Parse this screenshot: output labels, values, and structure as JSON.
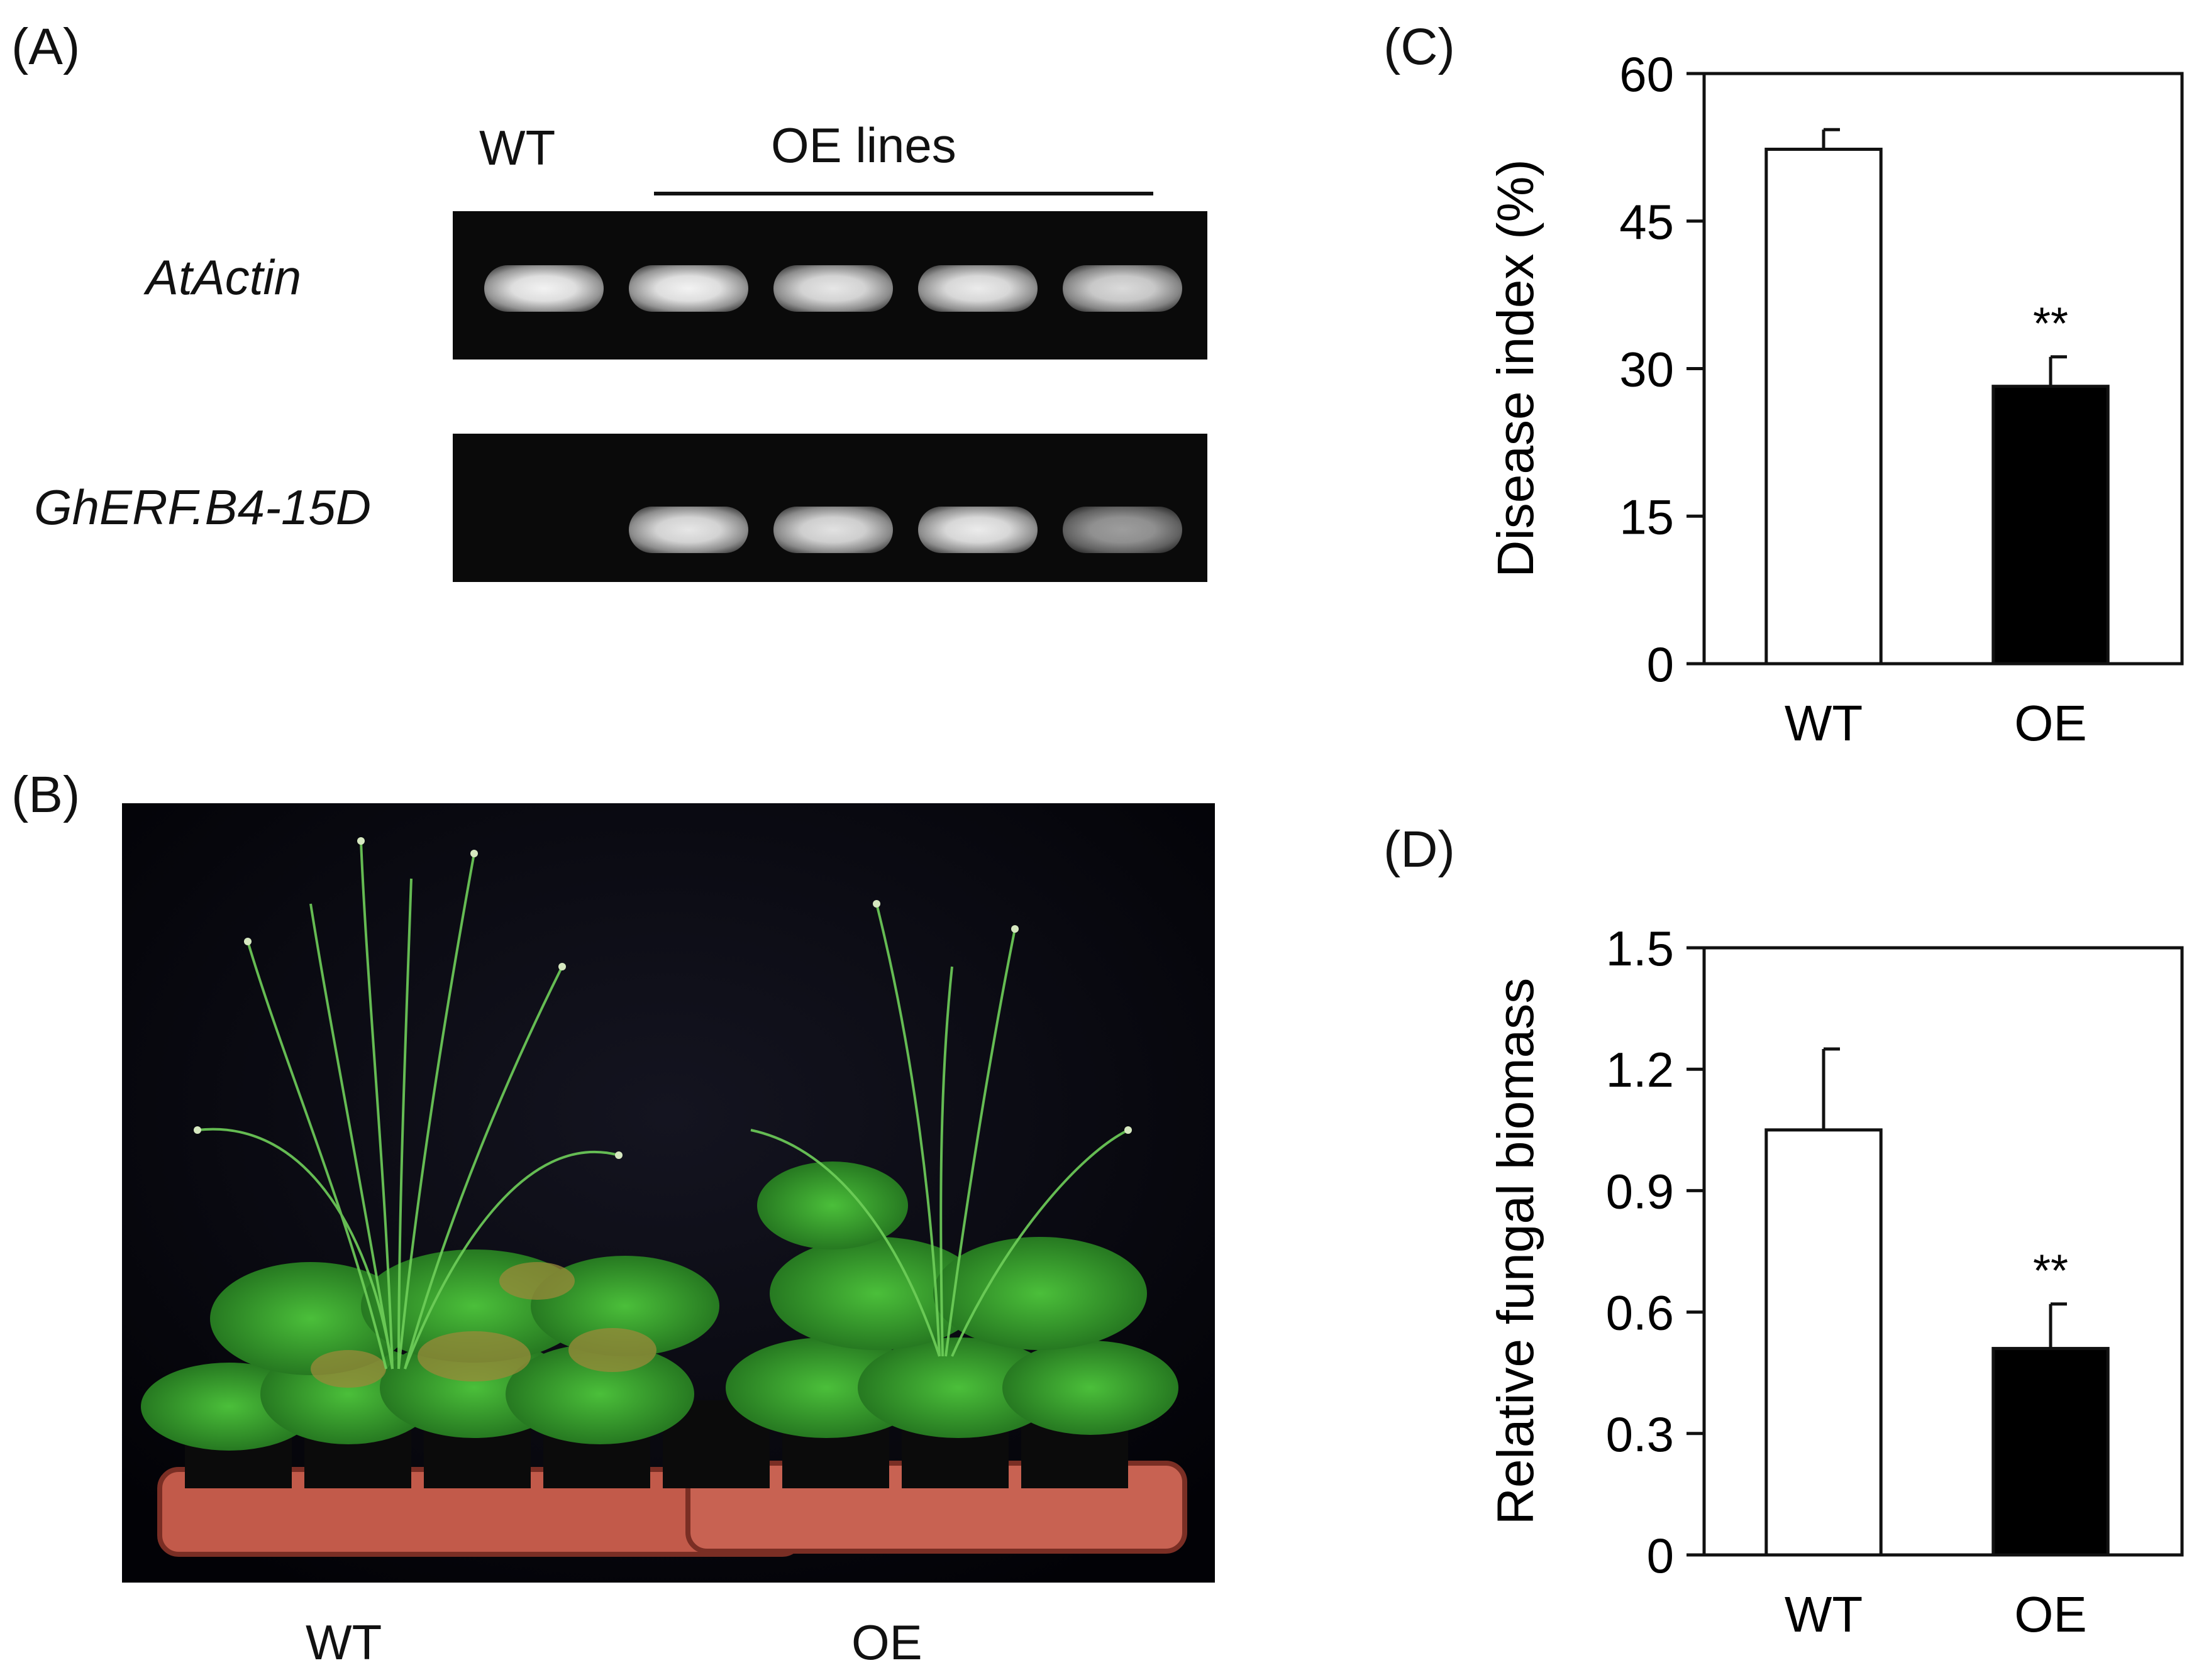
{
  "panels": {
    "A": {
      "label": "(A)",
      "header_wt": "WT",
      "header_oe": "OE lines",
      "genes": [
        "AtActin",
        "GhERF.B4-15D"
      ],
      "band_intensity": [
        [
          0.95,
          0.95,
          0.9,
          0.92,
          0.85
        ],
        [
          0.0,
          0.9,
          0.88,
          0.92,
          0.6
        ]
      ]
    },
    "B": {
      "label": "(B)",
      "labels": [
        "WT",
        "OE"
      ]
    },
    "C": {
      "label": "(C)"
    },
    "D": {
      "label": "(D)"
    }
  },
  "chart_data": [
    {
      "type": "bar",
      "panel": "C",
      "categories": [
        "WT",
        "OE"
      ],
      "values": [
        52.3,
        28.2
      ],
      "errors": [
        2.0,
        3.0
      ],
      "colors": [
        "#ffffff",
        "#000000"
      ],
      "annotations": [
        "",
        "**"
      ],
      "ylabel": "Disease index (%)",
      "ylim": [
        0,
        60
      ],
      "yticks": [
        0,
        15,
        30,
        45,
        60
      ],
      "ytick_labels": [
        "0",
        "15",
        "30",
        "45",
        "60"
      ]
    },
    {
      "type": "bar",
      "panel": "D",
      "categories": [
        "WT",
        "OE"
      ],
      "values": [
        1.05,
        0.51
      ],
      "errors": [
        0.2,
        0.11
      ],
      "colors": [
        "#ffffff",
        "#000000"
      ],
      "annotations": [
        "",
        "**"
      ],
      "ylabel": "Relative fungal biomass",
      "ylim": [
        0,
        1.5
      ],
      "yticks": [
        0,
        0.3,
        0.6,
        0.9,
        1.2,
        1.5
      ],
      "ytick_labels": [
        "0",
        "0.3",
        "0.6",
        "0.9",
        "1.2",
        "1.5"
      ]
    }
  ]
}
